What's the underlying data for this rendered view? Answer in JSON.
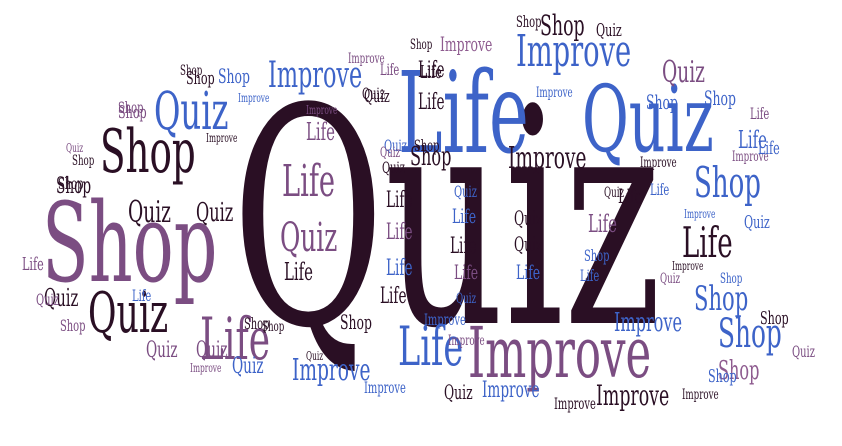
{
  "colors": {
    "dark": "#2a0f24",
    "purple": "#7b4d82",
    "blue": "#3d63c8",
    "mauve": "#8e5b8f",
    "lightblue": "#4f76d6"
  },
  "words": [
    {
      "text": "Quiz",
      "color": "dark"
    },
    {
      "text": "Life",
      "color": "blue"
    },
    {
      "text": "Quiz",
      "color": "blue"
    },
    {
      "text": "Shop",
      "color": "purple"
    },
    {
      "text": "Improve",
      "color": "purple"
    },
    {
      "text": "Shop",
      "color": "dark"
    },
    {
      "text": "Quiz",
      "color": "blue"
    },
    {
      "text": "Improve",
      "color": "blue"
    },
    {
      "text": "Quiz",
      "color": "dark"
    },
    {
      "text": "Life",
      "color": "purple"
    },
    {
      "text": "Life",
      "color": "blue"
    },
    {
      "text": "Shop",
      "color": "blue"
    },
    {
      "text": "Shop",
      "color": "blue"
    },
    {
      "text": "Improve",
      "color": "blue"
    },
    {
      "text": "Life",
      "color": "dark"
    },
    {
      "text": "Quiz",
      "color": "purple"
    },
    {
      "text": "Life",
      "color": "purple"
    },
    {
      "text": "Quiz",
      "color": "purple"
    },
    {
      "text": "Shop",
      "color": "dark"
    },
    {
      "text": "Quiz",
      "color": "dark"
    },
    {
      "text": "Quiz",
      "color": "dark"
    },
    {
      "text": "Shop",
      "color": "dark"
    },
    {
      "text": "Shop",
      "color": "blue"
    },
    {
      "text": "Improve",
      "color": "blue"
    },
    {
      "text": "Improve",
      "color": "dark"
    },
    {
      "text": "Improve",
      "color": "blue"
    },
    {
      "text": "Improve",
      "color": "dark"
    },
    {
      "text": "Shop",
      "color": "dark"
    },
    {
      "text": "Shop",
      "color": "mauve"
    },
    {
      "text": "Improve",
      "color": "mauve"
    },
    {
      "text": "Quiz",
      "color": "dark"
    },
    {
      "text": "Shop",
      "color": "dark"
    },
    {
      "text": "Shop",
      "color": "dark"
    },
    {
      "text": "Quiz",
      "color": "blue"
    },
    {
      "text": "Shop",
      "color": "blue"
    },
    {
      "text": "Life",
      "color": "dark"
    },
    {
      "text": "Life",
      "color": "dark"
    },
    {
      "text": "Life",
      "color": "blue"
    },
    {
      "text": "Life",
      "color": "purple"
    },
    {
      "text": "Life",
      "color": "dark"
    },
    {
      "text": "Life",
      "color": "dark"
    },
    {
      "text": "Quiz",
      "color": "blue"
    },
    {
      "text": "Quiz",
      "color": "dark"
    },
    {
      "text": "Quiz",
      "color": "dark"
    },
    {
      "text": "Quiz",
      "color": "purple"
    },
    {
      "text": "Life",
      "color": "dark"
    },
    {
      "text": "Life",
      "color": "purple"
    },
    {
      "text": "Life",
      "color": "blue"
    },
    {
      "text": "Life",
      "color": "blue"
    },
    {
      "text": "Life",
      "color": "purple"
    },
    {
      "text": "Life",
      "color": "purple"
    },
    {
      "text": "Life",
      "color": "dark"
    },
    {
      "text": "Life",
      "color": "blue"
    },
    {
      "text": "Life",
      "color": "purple"
    },
    {
      "text": "Life",
      "color": "blue"
    },
    {
      "text": "Life",
      "color": "purple"
    },
    {
      "text": "Life",
      "color": "dark"
    },
    {
      "text": "Quiz",
      "color": "blue"
    },
    {
      "text": "Quiz",
      "color": "dark"
    },
    {
      "text": "Quiz",
      "color": "dark"
    },
    {
      "text": "Quiz",
      "color": "dark"
    },
    {
      "text": "Quiz",
      "color": "purple"
    },
    {
      "text": "Quiz",
      "color": "blue"
    },
    {
      "text": "Quiz",
      "color": "purple"
    },
    {
      "text": "Shop",
      "color": "blue"
    },
    {
      "text": "Shop",
      "color": "dark"
    },
    {
      "text": "Shop",
      "color": "blue"
    },
    {
      "text": "Shop",
      "color": "blue"
    },
    {
      "text": "Shop",
      "color": "dark"
    },
    {
      "text": "Shop",
      "color": "blue"
    },
    {
      "text": "Shop",
      "color": "dark"
    },
    {
      "text": "Shop",
      "color": "purple"
    },
    {
      "text": "Shop",
      "color": "dark"
    },
    {
      "text": "Shop",
      "color": "dark"
    },
    {
      "text": "Shop",
      "color": "purple"
    },
    {
      "text": "Improve",
      "color": "blue"
    },
    {
      "text": "Improve",
      "color": "purple"
    },
    {
      "text": "Improve",
      "color": "purple"
    },
    {
      "text": "Improve",
      "color": "dark"
    },
    {
      "text": "Improve",
      "color": "blue"
    },
    {
      "text": "Improve",
      "color": "dark"
    },
    {
      "text": "Improve",
      "color": "blue"
    },
    {
      "text": "Improve",
      "color": "purple"
    },
    {
      "text": "Improve",
      "color": "blue"
    },
    {
      "text": "Improve",
      "color": "purple"
    },
    {
      "text": "Improve",
      "color": "blue"
    },
    {
      "text": "Improve",
      "color": "purple"
    },
    {
      "text": "Improve",
      "color": "dark"
    },
    {
      "text": "Improve",
      "color": "dark"
    },
    {
      "text": "Improve",
      "color": "blue"
    },
    {
      "text": "Improve",
      "color": "dark"
    },
    {
      "text": "Quiz",
      "color": "purple"
    },
    {
      "text": "Quiz",
      "color": "purple"
    },
    {
      "text": "Quiz",
      "color": "dark"
    },
    {
      "text": "Quiz",
      "color": "blue"
    },
    {
      "text": "Quiz",
      "color": "dark"
    },
    {
      "text": "Quiz",
      "color": "purple"
    },
    {
      "text": "Life",
      "color": "purple"
    },
    {
      "text": "Life",
      "color": "blue"
    },
    {
      "text": "Shop",
      "color": "purple"
    },
    {
      "text": "Shop",
      "color": "dark"
    },
    {
      "text": "Shop",
      "color": "blue"
    },
    {
      "text": "Shop",
      "color": "dark"
    },
    {
      "text": "Life",
      "color": "dark"
    },
    {
      "text": "Quiz",
      "color": "dark"
    },
    {
      "text": "Shop",
      "color": "dark"
    },
    {
      "text": "Life",
      "color": "blue"
    },
    {
      "text": "Life",
      "color": "blue"
    },
    {
      "text": "Shop",
      "color": "dark"
    },
    {
      "text": "Quiz",
      "color": "dark"
    },
    {
      "text": "Quiz",
      "color": "purple"
    }
  ]
}
